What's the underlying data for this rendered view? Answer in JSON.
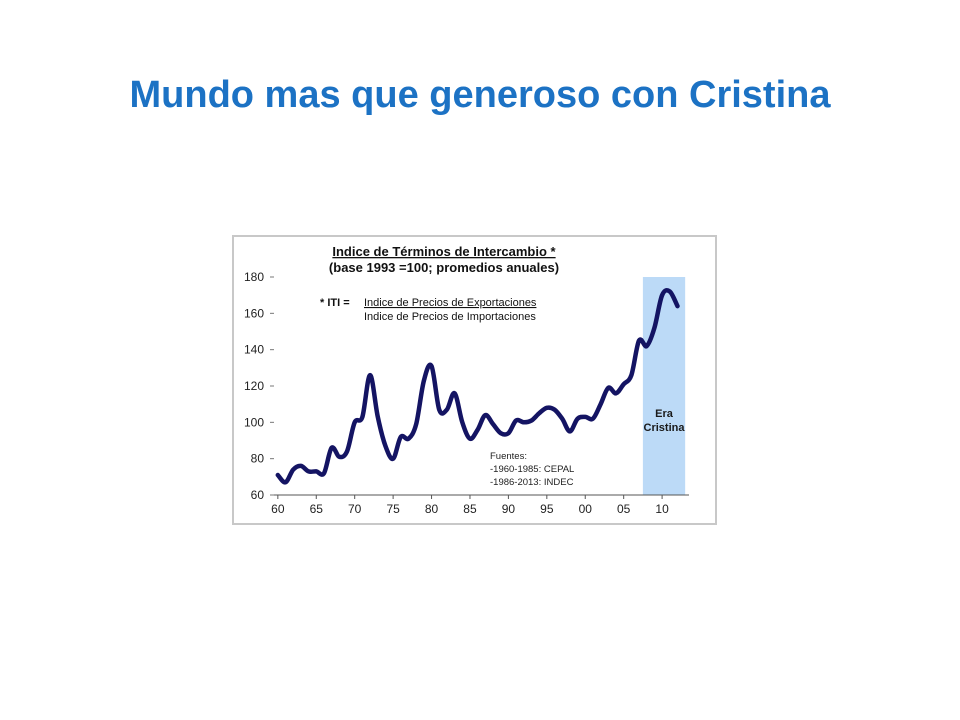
{
  "slide": {
    "title": "Mundo mas que generoso con Cristina"
  },
  "chart_data": {
    "type": "line",
    "title": "Indice de Términos de Intercambio *",
    "subtitle": "(base 1993 =100; promedios anuales)",
    "formula": {
      "lhs": "* ITI =",
      "numerator": "Indice de Precios de Exportaciones",
      "denominator": "Indice de Precios de Importaciones"
    },
    "sources": [
      "Fuentes:",
      "-1960-1985: CEPAL",
      "-1986-2013: INDEC"
    ],
    "band_label": [
      "Era",
      "Cristina"
    ],
    "band": [
      2007.5,
      2013
    ],
    "xlim": [
      1959.5,
      2013.5
    ],
    "ylim": [
      60,
      180
    ],
    "xticks": [
      1960,
      1965,
      1970,
      1975,
      1980,
      1985,
      1990,
      1995,
      2000,
      2005,
      2010
    ],
    "xtick_labels": [
      "60",
      "65",
      "70",
      "75",
      "80",
      "85",
      "90",
      "95",
      "00",
      "05",
      "10"
    ],
    "yticks": [
      60,
      80,
      100,
      120,
      140,
      160,
      180
    ],
    "series_color": "#141463",
    "band_color": "#bcdaf7",
    "x": [
      1960,
      1961,
      1962,
      1963,
      1964,
      1965,
      1966,
      1967,
      1968,
      1969,
      1970,
      1971,
      1972,
      1973,
      1974,
      1975,
      1976,
      1977,
      1978,
      1979,
      1980,
      1981,
      1982,
      1983,
      1984,
      1985,
      1986,
      1987,
      1988,
      1989,
      1990,
      1991,
      1992,
      1993,
      1994,
      1995,
      1996,
      1997,
      1998,
      1999,
      2000,
      2001,
      2002,
      2003,
      2004,
      2005,
      2006,
      2007,
      2008,
      2009,
      2010,
      2011,
      2012
    ],
    "y": [
      71,
      67,
      74,
      76,
      73,
      73,
      72,
      86,
      81,
      84,
      100,
      103,
      126,
      103,
      87,
      80,
      92,
      91,
      99,
      123,
      131,
      107,
      107,
      116,
      100,
      91,
      96,
      104,
      99,
      94,
      94,
      101,
      100,
      101,
      105,
      108,
      107,
      102,
      95,
      102,
      103,
      102,
      110,
      119,
      116,
      121,
      126,
      145,
      142,
      152,
      170,
      172,
      164
    ]
  }
}
